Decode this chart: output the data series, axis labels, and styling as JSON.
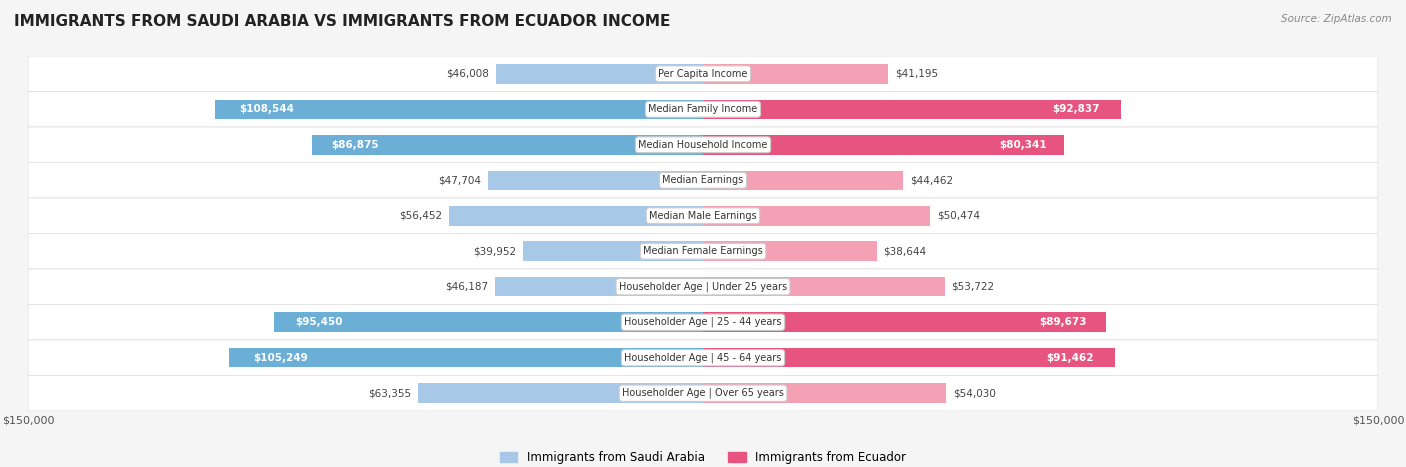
{
  "title": "IMMIGRANTS FROM SAUDI ARABIA VS IMMIGRANTS FROM ECUADOR INCOME",
  "source": "Source: ZipAtlas.com",
  "categories": [
    "Per Capita Income",
    "Median Family Income",
    "Median Household Income",
    "Median Earnings",
    "Median Male Earnings",
    "Median Female Earnings",
    "Householder Age | Under 25 years",
    "Householder Age | 25 - 44 years",
    "Householder Age | 45 - 64 years",
    "Householder Age | Over 65 years"
  ],
  "saudi_values": [
    46008,
    108544,
    86875,
    47704,
    56452,
    39952,
    46187,
    95450,
    105249,
    63355
  ],
  "ecuador_values": [
    41195,
    92837,
    80341,
    44462,
    50474,
    38644,
    53722,
    89673,
    91462,
    54030
  ],
  "saudi_labels": [
    "$46,008",
    "$108,544",
    "$86,875",
    "$47,704",
    "$56,452",
    "$39,952",
    "$46,187",
    "$95,450",
    "$105,249",
    "$63,355"
  ],
  "ecuador_labels": [
    "$41,195",
    "$92,837",
    "$80,341",
    "$44,462",
    "$50,474",
    "$38,644",
    "$53,722",
    "$89,673",
    "$91,462",
    "$54,030"
  ],
  "saudi_color_light": "#a8c8e8",
  "saudi_color_dark": "#6baed6",
  "ecuador_color_light": "#f4a0b5",
  "ecuador_color_dark": "#e75480",
  "max_value": 150000,
  "background_color": "#f5f5f5",
  "bar_bg_color": "#ffffff",
  "label_box_color": "#ffffff",
  "legend_saudi": "Immigrants from Saudi Arabia",
  "legend_ecuador": "Immigrants from Ecuador"
}
